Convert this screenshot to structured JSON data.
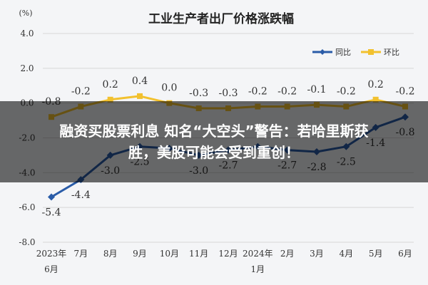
{
  "headline": {
    "line1": "融资买股票利息 知名“大空头”警告：若哈里斯获",
    "line2": "胜，美股可能会受到重创！"
  },
  "chart_data": {
    "type": "line",
    "title": "工业生产者出厂价格涨跌幅",
    "ylabel": "(%)",
    "ylim": [
      -8.0,
      4.0
    ],
    "yticks": [
      "4.0",
      "2.0",
      "0.0",
      "-2.0",
      "-4.0",
      "-6.0",
      "-8.0"
    ],
    "categories": [
      [
        "2023年",
        "6月"
      ],
      [
        "7月"
      ],
      [
        "8月"
      ],
      [
        "9月"
      ],
      [
        "10月"
      ],
      [
        "11月"
      ],
      [
        "12月"
      ],
      [
        "2024年",
        "1月"
      ],
      [
        "2月"
      ],
      [
        "3月"
      ],
      [
        "4月"
      ],
      [
        "5月"
      ],
      [
        "6月"
      ]
    ],
    "series": [
      {
        "name": "同比",
        "color": "#2a5ca8",
        "values": [
          -5.4,
          -4.4,
          -3.0,
          -2.5,
          -2.6,
          -3.0,
          -2.7,
          -2.5,
          -2.7,
          -2.8,
          -2.5,
          -1.4,
          -0.8
        ],
        "labels": [
          "-5.4",
          "-4.4",
          "-3.0",
          "-2.5",
          "",
          "-3.0",
          "-2.7",
          "",
          "-2.7",
          "-2.8",
          "-2.5",
          "-1.4",
          "-0.8"
        ]
      },
      {
        "name": "环比",
        "color": "#f2c12e",
        "values": [
          -0.8,
          -0.2,
          0.2,
          0.4,
          0.0,
          -0.3,
          -0.3,
          -0.2,
          -0.2,
          -0.1,
          -0.2,
          0.2,
          -0.2
        ],
        "labels": [
          "-0.8",
          "-0.2",
          "0.2",
          "0.4",
          "0.0",
          "-0.3",
          "-0.3",
          "-0.2",
          "-0.2",
          "-0.1",
          "-0.2",
          "0.2",
          "-0.2"
        ]
      }
    ],
    "grid": true,
    "legend": "top-right"
  }
}
